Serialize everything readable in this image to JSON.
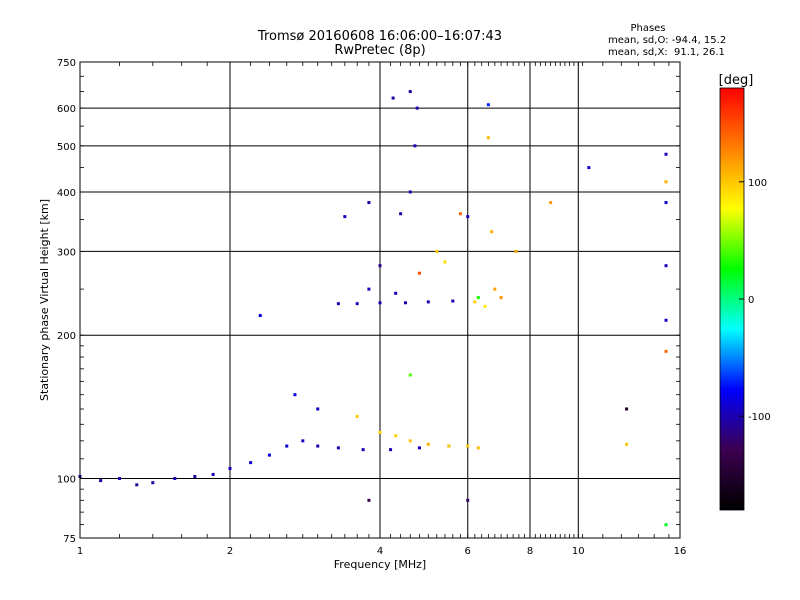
{
  "chart_data": {
    "type": "scatter",
    "title": "Tromsø 20160608 16:06:00–16:07:43",
    "subtitle": "RwPretec (8p)",
    "xlabel": "Frequency [MHz]",
    "ylabel": "Stationary phase Virtual Height [km]",
    "x_scale": "log",
    "y_scale": "log",
    "xlim": [
      1,
      16
    ],
    "ylim": [
      75,
      750
    ],
    "x_ticks": [
      {
        "value": 1,
        "label": "1"
      },
      {
        "value": 2,
        "label": "2"
      },
      {
        "value": 4,
        "label": "4"
      },
      {
        "value": 6,
        "label": "6"
      },
      {
        "value": 8,
        "label": "8"
      },
      {
        "value": 10,
        "label": "10"
      },
      {
        "value": 16,
        "label": "16"
      }
    ],
    "y_ticks": [
      {
        "value": 75,
        "label": "75"
      },
      {
        "value": 100,
        "label": "100"
      },
      {
        "value": 200,
        "label": "200"
      },
      {
        "value": 300,
        "label": "300"
      },
      {
        "value": 400,
        "label": "400"
      },
      {
        "value": 500,
        "label": "500"
      },
      {
        "value": 600,
        "label": "600"
      },
      {
        "value": 750,
        "label": "750"
      }
    ],
    "grid": true,
    "phases": {
      "title": "Phases",
      "line_o": "mean, sd,O: -94.4, 15.2",
      "line_x": "mean, sd,X:  91.1, 26.1"
    },
    "colorbar": {
      "label": "[deg]",
      "range": [
        -180,
        180
      ],
      "ticks": [
        {
          "value": 100,
          "label": "100"
        },
        {
          "value": 0,
          "label": "0"
        },
        {
          "value": -100,
          "label": "-100"
        }
      ],
      "colormap": [
        "#000000",
        "#3c0050",
        "#0000ff",
        "#00ffff",
        "#00ff00",
        "#ffff00",
        "#ff8000",
        "#ff0000"
      ]
    },
    "series": [
      {
        "values": [
          {
            "x": 1.0,
            "y": 101,
            "phase": -105
          },
          {
            "x": 1.1,
            "y": 99,
            "phase": -105
          },
          {
            "x": 1.2,
            "y": 100,
            "phase": -100
          },
          {
            "x": 1.3,
            "y": 97,
            "phase": -110
          },
          {
            "x": 1.4,
            "y": 98,
            "phase": -105
          },
          {
            "x": 1.55,
            "y": 100,
            "phase": -100
          },
          {
            "x": 1.7,
            "y": 101,
            "phase": -105
          },
          {
            "x": 1.85,
            "y": 102,
            "phase": -100
          },
          {
            "x": 2.0,
            "y": 105,
            "phase": -95
          },
          {
            "x": 2.2,
            "y": 108,
            "phase": -90
          },
          {
            "x": 2.4,
            "y": 112,
            "phase": -85
          },
          {
            "x": 2.6,
            "y": 117,
            "phase": -90
          },
          {
            "x": 2.8,
            "y": 120,
            "phase": -95
          },
          {
            "x": 3.0,
            "y": 117,
            "phase": -100
          },
          {
            "x": 3.3,
            "y": 116,
            "phase": -100
          },
          {
            "x": 3.7,
            "y": 115,
            "phase": -100
          },
          {
            "x": 4.2,
            "y": 115,
            "phase": -100
          },
          {
            "x": 4.8,
            "y": 116,
            "phase": -95
          },
          {
            "x": 5.5,
            "y": 117,
            "phase": -95
          },
          {
            "x": 3.3,
            "y": 233,
            "phase": -100
          },
          {
            "x": 3.6,
            "y": 233,
            "phase": -100
          },
          {
            "x": 4.0,
            "y": 234,
            "phase": -100
          },
          {
            "x": 4.5,
            "y": 234,
            "phase": -100
          },
          {
            "x": 5.0,
            "y": 235,
            "phase": -100
          },
          {
            "x": 5.6,
            "y": 236,
            "phase": -95
          },
          {
            "x": 3.8,
            "y": 250,
            "phase": -95
          },
          {
            "x": 4.3,
            "y": 245,
            "phase": -95
          },
          {
            "x": 4.4,
            "y": 360,
            "phase": -100
          },
          {
            "x": 4.6,
            "y": 400,
            "phase": -100
          },
          {
            "x": 4.7,
            "y": 500,
            "phase": -100
          },
          {
            "x": 4.75,
            "y": 600,
            "phase": -100
          },
          {
            "x": 4.25,
            "y": 630,
            "phase": -105
          },
          {
            "x": 4.6,
            "y": 650,
            "phase": -105
          },
          {
            "x": 3.4,
            "y": 355,
            "phase": -95
          },
          {
            "x": 3.8,
            "y": 380,
            "phase": -100
          },
          {
            "x": 4.0,
            "y": 280,
            "phase": -110
          },
          {
            "x": 6.0,
            "y": 355,
            "phase": -95
          },
          {
            "x": 3.0,
            "y": 140,
            "phase": -90
          },
          {
            "x": 2.7,
            "y": 150,
            "phase": -85
          },
          {
            "x": 2.3,
            "y": 220,
            "phase": -85
          },
          {
            "x": 6.0,
            "y": 90,
            "phase": -120
          },
          {
            "x": 3.8,
            "y": 90,
            "phase": -130
          },
          {
            "x": 15.0,
            "y": 480,
            "phase": -95
          },
          {
            "x": 15.0,
            "y": 380,
            "phase": -90
          },
          {
            "x": 15.0,
            "y": 280,
            "phase": -95
          },
          {
            "x": 15.0,
            "y": 215,
            "phase": -95
          },
          {
            "x": 12.5,
            "y": 140,
            "phase": -150
          },
          {
            "x": 10.5,
            "y": 450,
            "phase": -90
          },
          {
            "x": 6.6,
            "y": 610,
            "phase": -70
          }
        ]
      },
      {
        "values": [
          {
            "x": 4.0,
            "y": 125,
            "phase": 95
          },
          {
            "x": 4.3,
            "y": 123,
            "phase": 95
          },
          {
            "x": 4.6,
            "y": 120,
            "phase": 100
          },
          {
            "x": 5.0,
            "y": 118,
            "phase": 110
          },
          {
            "x": 5.5,
            "y": 117,
            "phase": 95
          },
          {
            "x": 6.0,
            "y": 117,
            "phase": 100
          },
          {
            "x": 6.3,
            "y": 116,
            "phase": 105
          },
          {
            "x": 3.6,
            "y": 135,
            "phase": 100
          },
          {
            "x": 5.2,
            "y": 300,
            "phase": 95
          },
          {
            "x": 5.4,
            "y": 285,
            "phase": 90
          },
          {
            "x": 6.2,
            "y": 235,
            "phase": 95
          },
          {
            "x": 6.5,
            "y": 230,
            "phase": 85
          },
          {
            "x": 7.0,
            "y": 240,
            "phase": 120
          },
          {
            "x": 6.8,
            "y": 250,
            "phase": 115
          },
          {
            "x": 6.7,
            "y": 330,
            "phase": 110
          },
          {
            "x": 6.6,
            "y": 520,
            "phase": 105
          },
          {
            "x": 8.8,
            "y": 380,
            "phase": 120
          },
          {
            "x": 7.5,
            "y": 300,
            "phase": 110
          },
          {
            "x": 15.0,
            "y": 420,
            "phase": 110
          },
          {
            "x": 15.0,
            "y": 185,
            "phase": 140
          },
          {
            "x": 12.5,
            "y": 118,
            "phase": 100
          },
          {
            "x": 4.6,
            "y": 165,
            "phase": 40
          },
          {
            "x": 6.3,
            "y": 240,
            "phase": 30
          },
          {
            "x": 4.8,
            "y": 270,
            "phase": 150
          },
          {
            "x": 5.8,
            "y": 360,
            "phase": 140
          },
          {
            "x": 15.0,
            "y": 80,
            "phase": 20
          }
        ]
      }
    ]
  }
}
